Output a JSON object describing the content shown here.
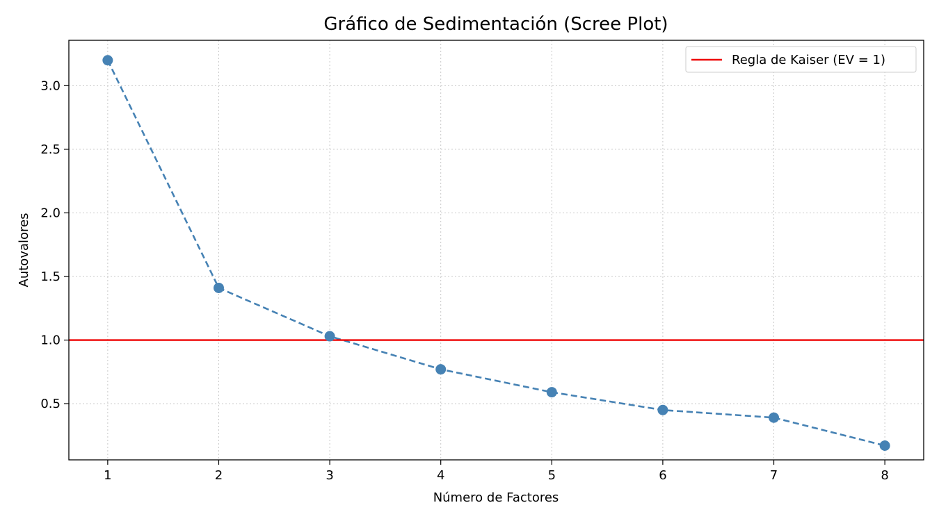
{
  "chart_data": {
    "type": "line",
    "title": "Gráfico de Sedimentación (Scree Plot)",
    "xlabel": "Número de Factores",
    "ylabel": "Autovalores",
    "x": [
      1,
      2,
      3,
      4,
      5,
      6,
      7,
      8
    ],
    "series": [
      {
        "values": [
          3.2,
          1.41,
          1.03,
          0.77,
          0.59,
          0.45,
          0.39,
          0.17
        ],
        "color": "#4682b4",
        "line_style": "dashed",
        "marker": "circle"
      }
    ],
    "reference_lines": [
      {
        "orientation": "horizontal",
        "y": 1.0,
        "label": "Regla de Kaiser (EV = 1)",
        "color": "#ee0000"
      }
    ],
    "xlim": [
      0.65,
      8.35
    ],
    "ylim": [
      0.058,
      3.357
    ],
    "xticks": [
      1,
      2,
      3,
      4,
      5,
      6,
      7,
      8
    ],
    "yticks": [
      0.5,
      1.0,
      1.5,
      2.0,
      2.5,
      3.0
    ],
    "ytick_labels": [
      "0.5",
      "1.0",
      "1.5",
      "2.0",
      "2.5",
      "3.0"
    ],
    "grid": true,
    "legend_position": "top-right"
  }
}
